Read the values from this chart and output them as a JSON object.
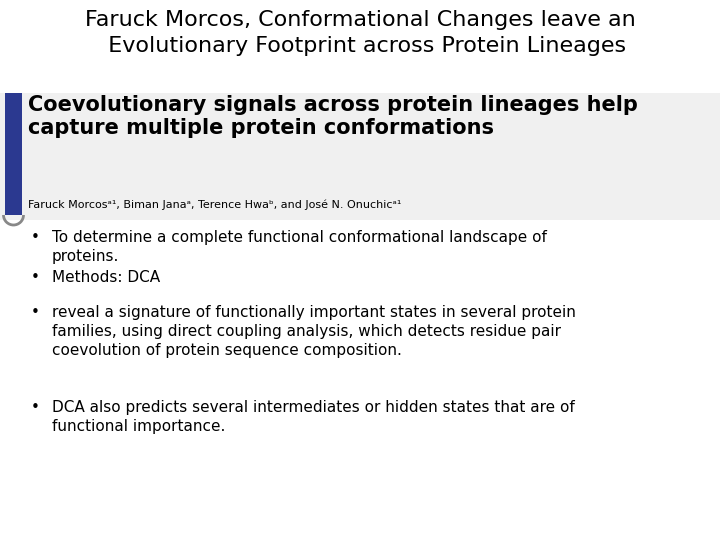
{
  "title_line1": "Faruck Morcos, Conformational Changes leave an",
  "title_line2": "  Evolutionary Footprint across Protein Lineages",
  "title_fontsize": 16,
  "paper_title_bold": "Coevolutionary signals across protein lineages help\ncapture multiple protein conformations",
  "paper_title_fontsize": 15,
  "authors": "Faruck Morcosᵃ¹, Biman Janaᵃ, Terence Hwaᵇ, and José N. Onuchicᵃ¹",
  "authors_fontsize": 8,
  "bullet_points": [
    "To determine a complete functional conformational landscape of\nproteins.",
    "Methods: DCA",
    "reveal a signature of functionally important states in several protein\nfamilies, using direct coupling analysis, which detects residue pair\ncoevolution of protein sequence composition.",
    "DCA also predicts several intermediates or hidden states that are of\nfunctional importance."
  ],
  "bullet_fontsize": 11,
  "bg_color": "#ffffff",
  "text_color": "#000000",
  "title_color": "#000000",
  "paper_title_color": "#000000",
  "sidebar_color": "#2b3990",
  "arc_color": "#888888"
}
